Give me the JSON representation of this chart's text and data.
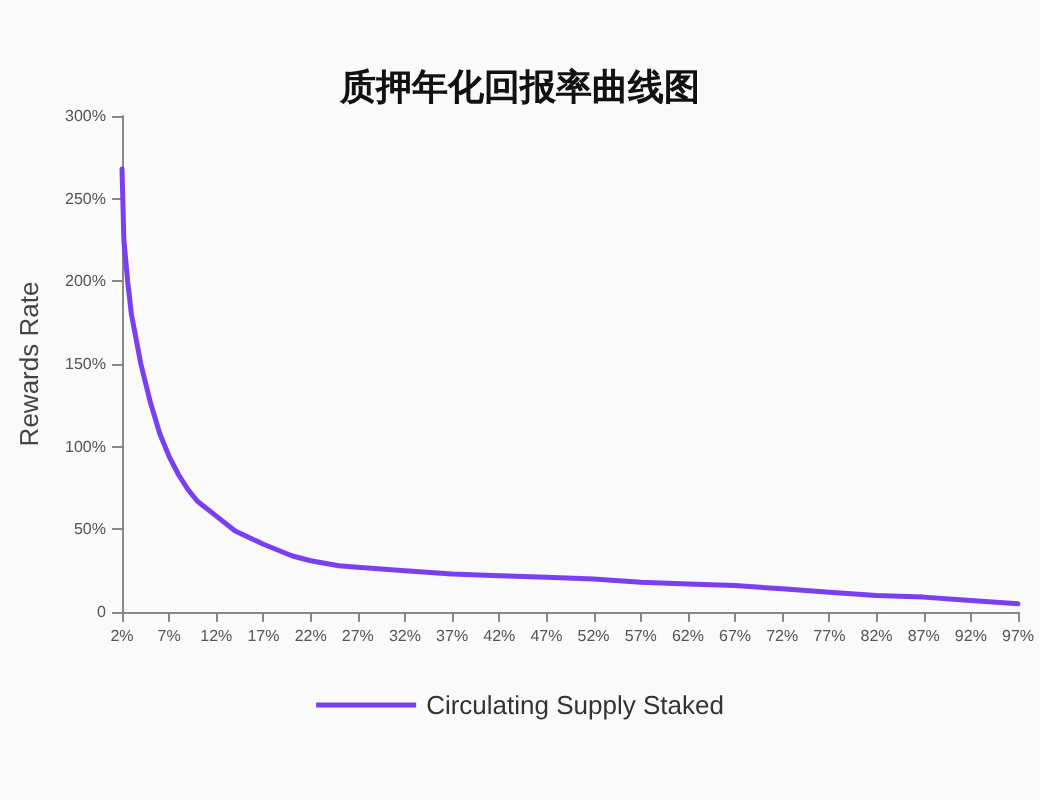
{
  "chart_data": {
    "type": "line",
    "title": "质押年化回报率曲线图",
    "ylabel": "Rewards Rate",
    "xlim": [
      2,
      97
    ],
    "xticks": [
      {
        "value": 2,
        "label": "2%"
      },
      {
        "value": 7,
        "label": "7%"
      },
      {
        "value": 12,
        "label": "12%"
      },
      {
        "value": 17,
        "label": "17%"
      },
      {
        "value": 22,
        "label": "22%"
      },
      {
        "value": 27,
        "label": "27%"
      },
      {
        "value": 32,
        "label": "32%"
      },
      {
        "value": 37,
        "label": "37%"
      },
      {
        "value": 42,
        "label": "42%"
      },
      {
        "value": 47,
        "label": "47%"
      },
      {
        "value": 52,
        "label": "52%"
      },
      {
        "value": 57,
        "label": "57%"
      },
      {
        "value": 62,
        "label": "62%"
      },
      {
        "value": 67,
        "label": "67%"
      },
      {
        "value": 72,
        "label": "72%"
      },
      {
        "value": 77,
        "label": "77%"
      },
      {
        "value": 82,
        "label": "82%"
      },
      {
        "value": 87,
        "label": "87%"
      },
      {
        "value": 92,
        "label": "92%"
      },
      {
        "value": 97,
        "label": "97%"
      }
    ],
    "ylim": [
      0,
      300
    ],
    "yticks": [
      0,
      {
        "value": 50,
        "label": "50%"
      },
      {
        "value": 100,
        "label": "100%"
      },
      {
        "value": 150,
        "label": "150%"
      },
      {
        "value": 200,
        "label": "200%"
      },
      {
        "value": 250,
        "label": "250%"
      },
      {
        "value": 300,
        "label": "300%"
      }
    ],
    "x": [
      2,
      2.2,
      2.6,
      3,
      4,
      5,
      6,
      7,
      8,
      9,
      10,
      12,
      14,
      17,
      20,
      22,
      25,
      27,
      32,
      37,
      42,
      47,
      52,
      57,
      62,
      67,
      72,
      77,
      82,
      87,
      92,
      97
    ],
    "series": [
      {
        "name": "Circulating Supply Staked",
        "color": "#7b3ff2",
        "values": [
          268,
          225,
          200,
          180,
          150,
          127,
          108,
          94,
          83,
          74,
          67,
          58,
          49,
          41,
          34,
          31,
          28,
          27,
          25,
          23,
          22,
          21,
          20,
          18,
          17,
          16,
          14,
          12,
          10,
          9,
          7,
          5
        ]
      }
    ],
    "grid": false,
    "legend": "bottom",
    "marker": "none",
    "line_style": "solid"
  }
}
